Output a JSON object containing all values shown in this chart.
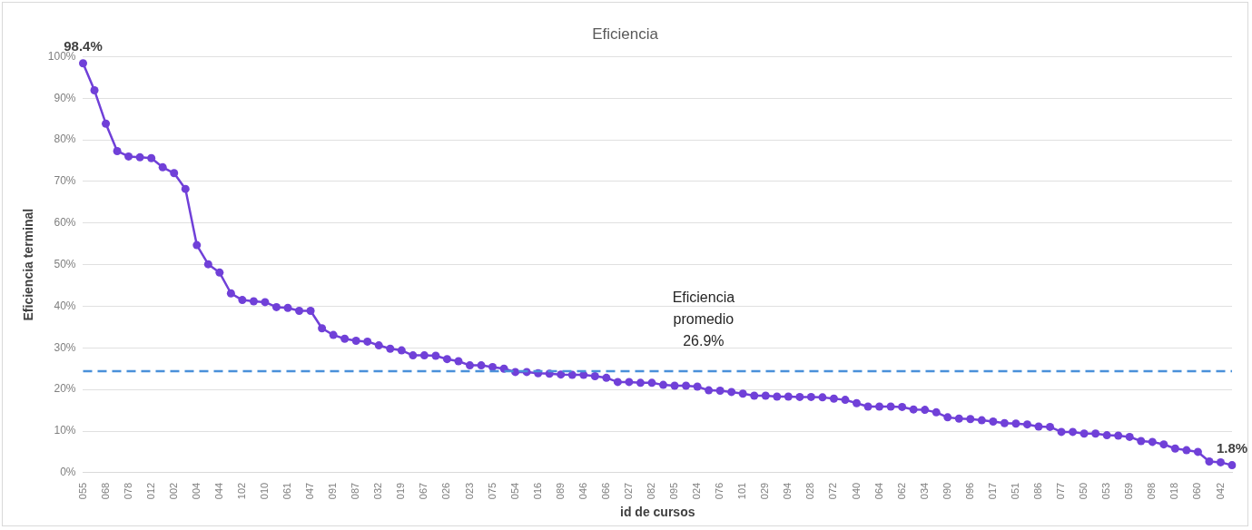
{
  "chart_data": {
    "type": "line",
    "title": "Eficiencia",
    "xlabel": "id de cursos",
    "ylabel": "Eficiencia terminal",
    "categories": [
      "055",
      null,
      "068",
      null,
      "078",
      null,
      "012",
      null,
      "002",
      null,
      "004",
      null,
      "044",
      null,
      "102",
      null,
      "010",
      null,
      "061",
      null,
      "047",
      null,
      "091",
      null,
      "087",
      null,
      "032",
      null,
      "019",
      null,
      "067",
      null,
      "026",
      null,
      "023",
      null,
      "075",
      null,
      "054",
      null,
      "016",
      null,
      "089",
      null,
      "046",
      null,
      "066",
      null,
      "027",
      null,
      "082",
      null,
      "095",
      null,
      "024",
      null,
      "076",
      null,
      "101",
      null,
      "029",
      null,
      "094",
      null,
      "028",
      null,
      "072",
      null,
      "040",
      null,
      "064",
      null,
      "062",
      null,
      "034",
      null,
      "090",
      null,
      "096",
      null,
      "017",
      null,
      "051",
      null,
      "086",
      null,
      "077",
      null,
      "050",
      null,
      "053",
      null,
      "059",
      null,
      "098",
      null,
      "018",
      null,
      "060",
      null,
      "042",
      null
    ],
    "series": [
      {
        "color": "#7040d8",
        "values": [
          98.4,
          91.9,
          83.9,
          77.3,
          76.0,
          75.8,
          75.6,
          73.4,
          72.0,
          68.2,
          54.7,
          50.1,
          48.1,
          43.1,
          41.5,
          41.2,
          41.0,
          39.8,
          39.6,
          38.9,
          38.9,
          34.7,
          33.1,
          32.2,
          31.7,
          31.5,
          30.6,
          29.8,
          29.4,
          28.2,
          28.2,
          28.1,
          27.3,
          26.8,
          25.8,
          25.8,
          25.4,
          25.0,
          24.2,
          24.2,
          23.9,
          23.8,
          23.6,
          23.5,
          23.5,
          23.2,
          22.8,
          21.8,
          21.8,
          21.6,
          21.6,
          21.1,
          20.9,
          20.9,
          20.7,
          19.8,
          19.7,
          19.4,
          19.0,
          18.5,
          18.5,
          18.3,
          18.3,
          18.2,
          18.2,
          18.1,
          17.8,
          17.5,
          16.7,
          15.9,
          15.9,
          15.9,
          15.8,
          15.2,
          15.1,
          14.5,
          13.3,
          13.0,
          12.9,
          12.6,
          12.3,
          11.9,
          11.8,
          11.6,
          11.1,
          11.0,
          9.8,
          9.8,
          9.4,
          9.4,
          9.0,
          8.9,
          8.6,
          7.6,
          7.4,
          6.8,
          5.8,
          5.4,
          5.0,
          2.7,
          2.5,
          1.8
        ],
        "value_labels": [
          "98.4%",
          null,
          null,
          null,
          null,
          null,
          null,
          null,
          null,
          null,
          null,
          null,
          null,
          null,
          null,
          null,
          null,
          null,
          null,
          null,
          null,
          null,
          null,
          null,
          null,
          null,
          null,
          null,
          null,
          null,
          null,
          null,
          null,
          null,
          null,
          null,
          null,
          null,
          null,
          null,
          null,
          null,
          null,
          null,
          null,
          null,
          null,
          null,
          null,
          null,
          null,
          null,
          null,
          null,
          null,
          null,
          null,
          null,
          null,
          null,
          null,
          null,
          null,
          null,
          null,
          null,
          null,
          null,
          null,
          null,
          null,
          null,
          null,
          null,
          null,
          null,
          null,
          null,
          null,
          null,
          null,
          null,
          null,
          null,
          null,
          null,
          null,
          null,
          null,
          null,
          null,
          null,
          null,
          null,
          null,
          null,
          null,
          null,
          null,
          null,
          null,
          "1.8%"
        ]
      }
    ],
    "ylim": [
      0,
      100
    ],
    "yticks": [
      {
        "value": 0,
        "label": "0%"
      },
      {
        "value": 10,
        "label": "10%"
      },
      {
        "value": 20,
        "label": "20%"
      },
      {
        "value": 30,
        "label": "30%"
      },
      {
        "value": 40,
        "label": "40%"
      },
      {
        "value": 50,
        "label": "50%"
      },
      {
        "value": 60,
        "label": "60%"
      },
      {
        "value": 70,
        "label": "70%"
      },
      {
        "value": 80,
        "label": "80%"
      },
      {
        "value": 90,
        "label": "90%"
      },
      {
        "value": 100,
        "label": "100%"
      }
    ],
    "ref_lines": [
      {
        "axis": "y",
        "value": 24.4,
        "label": "Eficiencia promedio 26.9%",
        "color": "#4a90d9",
        "line_style": "dashed"
      }
    ],
    "grid": "y",
    "legend": false,
    "marker": "circle",
    "line_style": "solid"
  }
}
